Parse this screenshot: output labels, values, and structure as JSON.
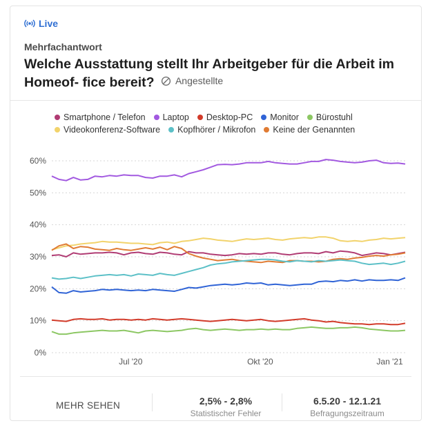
{
  "header": {
    "live_label": "Live",
    "question_type": "Mehrfachantwort",
    "title": "Welche Ausstattung stellt Ihr Arbeitgeber für die Arbeit im Homeof- fice bereit?",
    "audience": "Angestellte"
  },
  "legend": [
    {
      "name": "Smartphone / Telefon",
      "color": "#b03b73"
    },
    {
      "name": "Laptop",
      "color": "#a259e0"
    },
    {
      "name": "Desktop-PC",
      "color": "#d23b2a"
    },
    {
      "name": "Monitor",
      "color": "#2f63d6"
    },
    {
      "name": "Bürostuhl",
      "color": "#8cc763"
    },
    {
      "name": "Videokonferenz-Software",
      "color": "#f2d36b"
    },
    {
      "name": "Kopfhörer / Mikrofon",
      "color": "#5cc0c7"
    },
    {
      "name": "Keine der Genannten",
      "color": "#e07b33"
    }
  ],
  "chart_data": {
    "type": "line",
    "x_start": "2020-05-06",
    "x_end": "2021-01-12",
    "x_ticks": [
      {
        "label": "Jul '20",
        "date": "2020-07-01"
      },
      {
        "label": "Okt '20",
        "date": "2020-10-01"
      },
      {
        "label": "Jan '21",
        "date": "2021-01-01"
      }
    ],
    "y_ticks": [
      "0%",
      "10%",
      "20%",
      "30%",
      "40%",
      "50%",
      "60%"
    ],
    "ylim": [
      0,
      60
    ],
    "grid": true,
    "legend_position": "top",
    "series": [
      {
        "name": "Laptop",
        "color": "#a259e0",
        "values": [
          55.2,
          54.2,
          53.8,
          54.8,
          54,
          54.2,
          55.2,
          55,
          55.4,
          55.2,
          55.6,
          55.4,
          55.4,
          54.8,
          54.6,
          55.2,
          55.2,
          55.6,
          55,
          56,
          56.6,
          57.2,
          58,
          58.8,
          58.9,
          58.8,
          59,
          59.4,
          59.4,
          59.4,
          59.8,
          59.4,
          59.2,
          59,
          59,
          59.4,
          59.8,
          59.8,
          60.4,
          60.2,
          59.8,
          59.6,
          59.4,
          59.6,
          60,
          60.2,
          59.4,
          59.2,
          59.3,
          59
        ]
      },
      {
        "name": "Videokonferenz-Software",
        "color": "#f2d36b",
        "values": [
          32.2,
          32.8,
          33.4,
          33.6,
          34,
          34.2,
          34.4,
          34.8,
          34.6,
          34.6,
          34.4,
          34.2,
          34.2,
          34,
          33.8,
          34.4,
          34.6,
          34.2,
          34.8,
          35,
          35.4,
          35.8,
          35.6,
          35.2,
          35,
          34.8,
          35.2,
          35.6,
          35.4,
          35.6,
          35.8,
          35.4,
          35.2,
          35.6,
          35.8,
          36,
          35.8,
          36.2,
          36.2,
          35.8,
          35,
          34.8,
          35,
          34.8,
          35.2,
          35.4,
          35.8,
          35.6,
          35.8,
          36
        ]
      },
      {
        "name": "Smartphone / Telefon",
        "color": "#b03b73",
        "values": [
          30.4,
          30.6,
          30,
          31.2,
          30.8,
          31,
          31.2,
          31.2,
          31.4,
          31.2,
          30.6,
          31.2,
          31.4,
          31,
          30.8,
          31.4,
          31.2,
          30.8,
          30.6,
          31.6,
          31.2,
          31.2,
          30.8,
          30.6,
          30.4,
          30.6,
          31,
          30.8,
          31,
          30.8,
          31.2,
          31.2,
          30.8,
          30.6,
          31,
          31.2,
          31.2,
          31,
          31.6,
          31.2,
          31.8,
          31.6,
          31.2,
          30.4,
          30.8,
          31.2,
          31,
          30.6,
          31,
          31.4
        ]
      },
      {
        "name": "Keine der Genannten",
        "color": "#e07b33",
        "values": [
          32,
          33.4,
          34,
          32.6,
          33.2,
          33,
          32.4,
          32.2,
          32,
          32.6,
          32.2,
          32,
          32.4,
          32.8,
          32.4,
          33,
          32.2,
          33.2,
          32.6,
          31,
          30.2,
          29.6,
          29.2,
          28.8,
          29,
          29.2,
          28.8,
          28.6,
          28.4,
          28.2,
          28.6,
          28.4,
          28.2,
          28.8,
          28.8,
          28.6,
          28.6,
          28.4,
          28.6,
          29.2,
          29.4,
          29.2,
          29.6,
          29.8,
          30.2,
          30.4,
          30.2,
          30.6,
          30.8,
          31.2
        ]
      },
      {
        "name": "Kopfhörer / Mikrofon",
        "color": "#5cc0c7",
        "values": [
          23.4,
          23,
          23.2,
          23.6,
          23.2,
          23.6,
          24,
          24.2,
          24.4,
          24.2,
          24.4,
          24,
          24.6,
          24.4,
          24.2,
          24.8,
          24.4,
          24.2,
          24.8,
          25.4,
          26,
          26.6,
          27.4,
          27.8,
          28,
          28.4,
          28.6,
          28.8,
          29,
          29.2,
          29.2,
          29,
          28.6,
          28.4,
          28.8,
          28.6,
          28.4,
          28.8,
          28.6,
          28.8,
          29,
          28.8,
          28.6,
          28,
          27.6,
          27.8,
          28,
          27.6,
          28,
          28.6
        ]
      },
      {
        "name": "Monitor",
        "color": "#2f63d6",
        "values": [
          20.6,
          18.8,
          18.6,
          19.4,
          19,
          19.2,
          19.4,
          19.8,
          19.6,
          19.8,
          19.6,
          19.4,
          19.6,
          19.4,
          19.8,
          19.6,
          19.4,
          19.2,
          19.8,
          20.4,
          20.2,
          20.6,
          21,
          21.2,
          21.4,
          21.2,
          21.4,
          21.8,
          21.6,
          21.8,
          21.2,
          21.4,
          21.2,
          21,
          21.2,
          21.4,
          21.4,
          22.2,
          22.4,
          22.2,
          22.6,
          22.4,
          22.8,
          22.4,
          22.8,
          22.6,
          22.6,
          22.8,
          22.6,
          23.4
        ]
      },
      {
        "name": "Desktop-PC",
        "color": "#d23b2a",
        "values": [
          10.2,
          10,
          9.8,
          10.4,
          10.6,
          10.4,
          10.4,
          10.6,
          10.2,
          10.4,
          10.4,
          10.2,
          10.4,
          10.2,
          10.6,
          10.4,
          10.2,
          10.4,
          10.6,
          10.4,
          10.2,
          10,
          9.8,
          10,
          10.2,
          10.4,
          10.2,
          10,
          10.2,
          10.4,
          10,
          9.8,
          10,
          10.2,
          10.4,
          10.6,
          10.2,
          10,
          9.6,
          9.8,
          9.4,
          9.2,
          9,
          9,
          8.8,
          9,
          9,
          8.8,
          8.8,
          9.2
        ]
      },
      {
        "name": "Bürostuhl",
        "color": "#8cc763",
        "values": [
          6.6,
          5.8,
          5.8,
          6.2,
          6.4,
          6.6,
          6.8,
          7,
          6.8,
          6.8,
          7,
          6.6,
          6.2,
          6.8,
          7,
          6.8,
          6.6,
          6.8,
          7,
          7.4,
          7.6,
          7.2,
          7,
          7.2,
          7.4,
          7.2,
          7,
          7.2,
          7.2,
          7.4,
          7.2,
          7.4,
          7.2,
          7.2,
          7.6,
          7.8,
          8,
          7.8,
          7.6,
          7.6,
          7.8,
          7.8,
          8,
          7.8,
          7.4,
          7.2,
          7,
          6.8,
          6.8,
          7
        ]
      }
    ]
  },
  "footer": {
    "more_label": "MEHR SEHEN",
    "error_value": "2,5% - 2,8%",
    "error_label": "Statistischer Fehler",
    "period_value": "6.5.20 - 12.1.21",
    "period_label": "Befragungszeitraum"
  }
}
